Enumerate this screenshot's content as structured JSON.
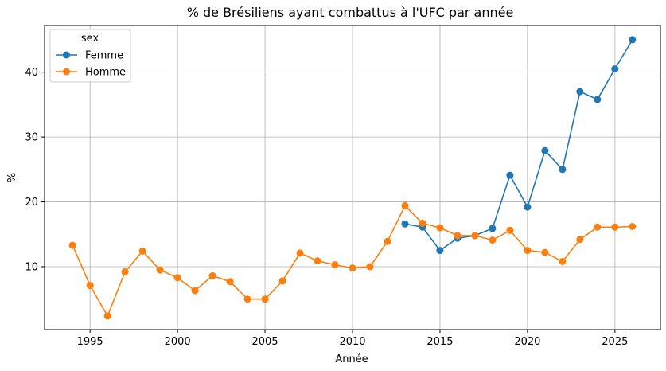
{
  "chart_data": {
    "type": "line",
    "title": "% de Brésiliens ayant combattus à l'UFC par année",
    "xlabel": "Année",
    "ylabel": "%",
    "xlim": [
      1992.4,
      2027.6
    ],
    "ylim": [
      0.3,
      47.2
    ],
    "xticks": [
      1995,
      2000,
      2005,
      2010,
      2015,
      2020,
      2025
    ],
    "yticks": [
      10,
      20,
      30,
      40
    ],
    "grid": true,
    "legend": {
      "title": "sex",
      "placement": "top-left"
    },
    "series": [
      {
        "name": "Femme",
        "color": "#1f77b4",
        "points": [
          [
            2013,
            16.6
          ],
          [
            2014,
            16.1
          ],
          [
            2015,
            12.5
          ],
          [
            2016,
            14.4
          ],
          [
            2017,
            14.8
          ],
          [
            2018,
            15.9
          ],
          [
            2019,
            24.1
          ],
          [
            2020,
            19.2
          ],
          [
            2021,
            27.9
          ],
          [
            2022,
            25.0
          ],
          [
            2023,
            37.0
          ],
          [
            2024,
            35.8
          ],
          [
            2025,
            40.5
          ],
          [
            2026,
            45.0
          ]
        ]
      },
      {
        "name": "Homme",
        "color": "#ff7f0e",
        "points": [
          [
            1994,
            13.3
          ],
          [
            1995,
            7.1
          ],
          [
            1996,
            2.4
          ],
          [
            1997,
            9.2
          ],
          [
            1998,
            12.4
          ],
          [
            1999,
            9.5
          ],
          [
            2000,
            8.3
          ],
          [
            2001,
            6.3
          ],
          [
            2002,
            8.6
          ],
          [
            2003,
            7.7
          ],
          [
            2004,
            5.0
          ],
          [
            2005,
            5.0
          ],
          [
            2006,
            7.8
          ],
          [
            2007,
            12.1
          ],
          [
            2008,
            10.9
          ],
          [
            2009,
            10.3
          ],
          [
            2010,
            9.8
          ],
          [
            2011,
            10.0
          ],
          [
            2012,
            13.9
          ],
          [
            2013,
            19.4
          ],
          [
            2014,
            16.7
          ],
          [
            2015,
            16.0
          ],
          [
            2016,
            14.8
          ],
          [
            2017,
            14.8
          ],
          [
            2018,
            14.1
          ],
          [
            2019,
            15.6
          ],
          [
            2020,
            12.5
          ],
          [
            2021,
            12.2
          ],
          [
            2022,
            10.8
          ],
          [
            2023,
            14.2
          ],
          [
            2024,
            16.1
          ],
          [
            2025,
            16.1
          ],
          [
            2026,
            16.2
          ]
        ]
      }
    ]
  }
}
